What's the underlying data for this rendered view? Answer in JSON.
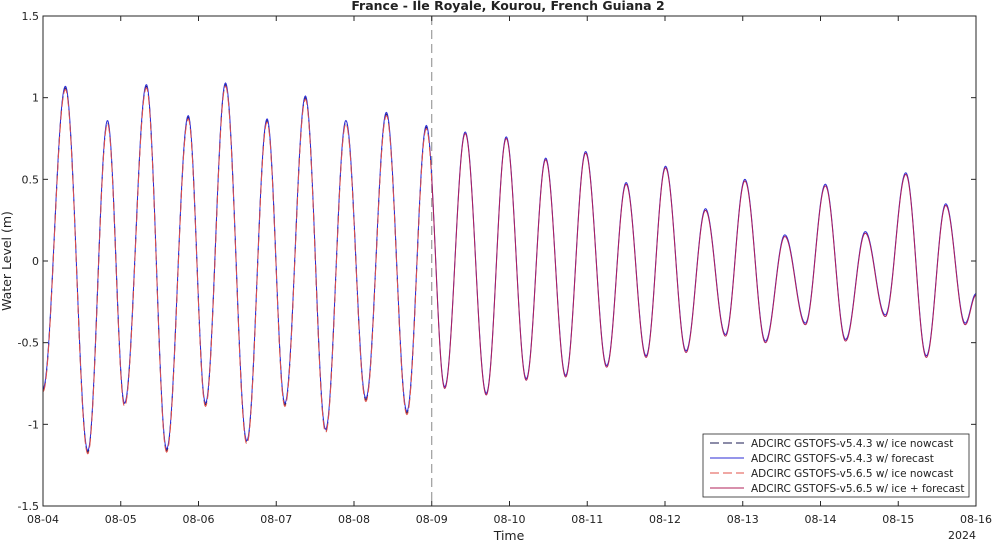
{
  "chart_data": {
    "type": "line",
    "title": "France - Ile Royale, Kourou, French Guiana 2",
    "xlabel": "Time",
    "ylabel": "Water Level (m)",
    "xlim": [
      "2024-08-04",
      "2024-08-16"
    ],
    "ylim": [
      -1.5,
      1.5
    ],
    "x_ticks": [
      "08-04",
      "08-05",
      "08-06",
      "08-07",
      "08-08",
      "08-09",
      "08-10",
      "08-11",
      "08-12",
      "08-13",
      "08-14",
      "08-15",
      "08-16"
    ],
    "y_ticks": [
      "-1.5",
      "-1",
      "-0.5",
      "0",
      "0.5",
      "1",
      "1.5"
    ],
    "year_label": "2024",
    "nowcast_end": "2024-08-09",
    "grid": false,
    "legend_position": "bottom-right",
    "extrema": [
      [
        "2024-08-04 00:00",
        -0.79
      ],
      [
        "2024-08-04 06:55",
        1.06
      ],
      [
        "2024-08-04 13:50",
        -1.17
      ],
      [
        "2024-08-04 19:55",
        0.85
      ],
      [
        "2024-08-05 01:10",
        -0.88
      ],
      [
        "2024-08-05 07:55",
        1.07
      ],
      [
        "2024-08-05 14:10",
        -1.16
      ],
      [
        "2024-08-05 20:50",
        0.88
      ],
      [
        "2024-08-06 02:10",
        -0.88
      ],
      [
        "2024-08-06 08:20",
        1.08
      ],
      [
        "2024-08-06 14:55",
        -1.11
      ],
      [
        "2024-08-06 21:10",
        0.86
      ],
      [
        "2024-08-07 02:40",
        -0.88
      ],
      [
        "2024-08-07 09:00",
        1.0
      ],
      [
        "2024-08-07 15:15",
        -1.04
      ],
      [
        "2024-08-07 21:30",
        0.85
      ],
      [
        "2024-08-08 03:40",
        -0.85
      ],
      [
        "2024-08-08 10:00",
        0.9
      ],
      [
        "2024-08-08 16:20",
        -0.93
      ],
      [
        "2024-08-08 22:20",
        0.82
      ],
      [
        "2024-08-09 04:00",
        -0.78
      ],
      [
        "2024-08-09 10:20",
        0.78
      ],
      [
        "2024-08-09 16:50",
        -0.82
      ],
      [
        "2024-08-09 23:00",
        0.75
      ],
      [
        "2024-08-10 05:10",
        -0.73
      ],
      [
        "2024-08-10 11:10",
        0.62
      ],
      [
        "2024-08-10 17:20",
        -0.71
      ],
      [
        "2024-08-10 23:30",
        0.66
      ],
      [
        "2024-08-11 06:00",
        -0.65
      ],
      [
        "2024-08-11 12:00",
        0.47
      ],
      [
        "2024-08-11 18:10",
        -0.59
      ],
      [
        "2024-08-12 00:10",
        0.57
      ],
      [
        "2024-08-12 06:30",
        -0.56
      ],
      [
        "2024-08-12 12:30",
        0.31
      ],
      [
        "2024-08-12 18:40",
        -0.46
      ],
      [
        "2024-08-13 00:40",
        0.49
      ],
      [
        "2024-08-13 07:00",
        -0.5
      ],
      [
        "2024-08-13 13:00",
        0.15
      ],
      [
        "2024-08-13 19:20",
        -0.39
      ],
      [
        "2024-08-14 01:30",
        0.46
      ],
      [
        "2024-08-14 07:45",
        -0.49
      ],
      [
        "2024-08-14 13:50",
        0.17
      ],
      [
        "2024-08-14 20:00",
        -0.34
      ],
      [
        "2024-08-15 02:20",
        0.53
      ],
      [
        "2024-08-15 08:40",
        -0.59
      ],
      [
        "2024-08-15 14:40",
        0.34
      ],
      [
        "2024-08-15 20:40",
        -0.39
      ],
      [
        "2024-08-16 00:00",
        -0.21
      ]
    ],
    "series": [
      {
        "name": "ADCIRC GSTOFS-v5.4.3 w/ ice nowcast",
        "color": "#1a1a50",
        "dash": "dashed",
        "range": [
          "2024-08-04",
          "2024-08-09"
        ],
        "offset": 0.0
      },
      {
        "name": "ADCIRC GSTOFS-v5.4.3 w/ forecast",
        "color": "#2b2bd6",
        "dash": "solid",
        "range": [
          "2024-08-04",
          "2024-08-16"
        ],
        "offset": 0.01
      },
      {
        "name": "ADCIRC GSTOFS-v5.6.5 w/ ice nowcast",
        "color": "#e0504a",
        "dash": "dashed",
        "range": [
          "2024-08-04",
          "2024-08-09"
        ],
        "offset": -0.01
      },
      {
        "name": "ADCIRC GSTOFS-v5.6.5 w/ ice + forecast",
        "color": "#b0205a",
        "dash": "solid",
        "range": [
          "2024-08-09",
          "2024-08-16"
        ],
        "offset": 0.0
      }
    ]
  }
}
